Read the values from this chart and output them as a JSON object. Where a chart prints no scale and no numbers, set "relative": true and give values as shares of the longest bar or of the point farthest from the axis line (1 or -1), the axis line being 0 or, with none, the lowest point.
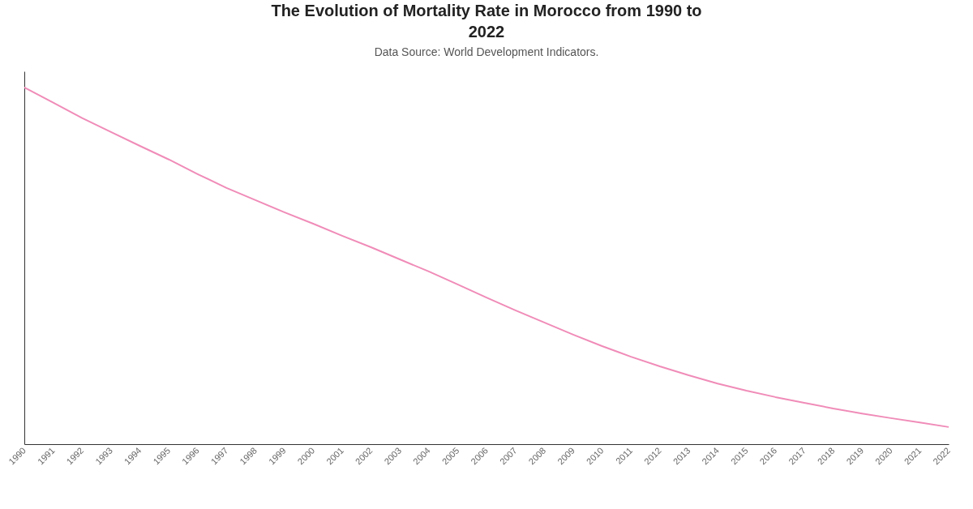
{
  "chart_data": {
    "type": "line",
    "title": "The Evolution of Mortality Rate in Morocco from 1990 to 2022",
    "subtitle": "Data Source: World Development Indicators.",
    "relative": true,
    "grid": false,
    "marker": "none",
    "categories": [
      "1990",
      "1991",
      "1992",
      "1993",
      "1994",
      "1995",
      "1996",
      "1997",
      "1998",
      "1999",
      "2000",
      "2001",
      "2002",
      "2003",
      "2004",
      "2005",
      "2006",
      "2007",
      "2008",
      "2009",
      "2010",
      "2011",
      "2012",
      "2013",
      "2014",
      "2015",
      "2016",
      "2017",
      "2018",
      "2019",
      "2020",
      "2021",
      "2022"
    ],
    "series": [
      {
        "color": "#f08cb8",
        "values": [
          1,
          0.957,
          0.914,
          0.875,
          0.836,
          0.798,
          0.757,
          0.718,
          0.684,
          0.65,
          0.618,
          0.584,
          0.552,
          0.518,
          0.484,
          0.448,
          0.411,
          0.375,
          0.341,
          0.307,
          0.275,
          0.245,
          0.218,
          0.193,
          0.17,
          0.15,
          0.132,
          0.116,
          0.1,
          0.086,
          0.073,
          0.061,
          0.048
        ]
      }
    ]
  }
}
